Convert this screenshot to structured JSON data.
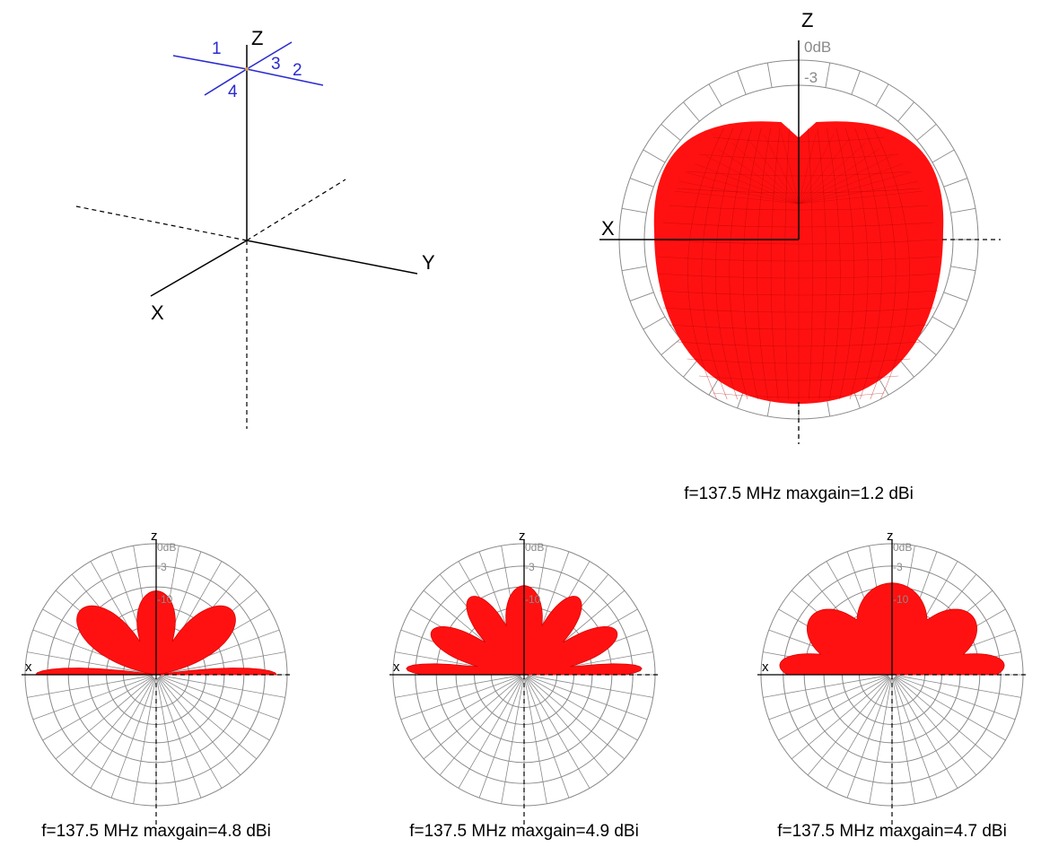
{
  "colors": {
    "pattern": "#ff1111",
    "mesh": "#b80000",
    "antenna": "#2a2ad0",
    "grid": "#8a8a8a",
    "axis": "#000000"
  },
  "antenna_diagram": {
    "axis_labels": {
      "z": "Z",
      "x": "X",
      "y": "Y"
    },
    "element_labels": [
      "1",
      "2",
      "3",
      "4"
    ]
  },
  "patterns": [
    {
      "axis_z": "Z",
      "axis_x": "X",
      "ring_labels": [
        "0dB",
        "-3"
      ],
      "caption": "f=137.5 MHz maxgain=1.2 dBi",
      "style": "omni-3d-mesh"
    },
    {
      "axis_z": "z",
      "axis_x": "x",
      "ring_labels": [
        "0dB",
        "-3",
        "-10"
      ],
      "caption": "f=137.5 MHz maxgain=4.8 dBi",
      "lobes": [
        {
          "elevation_deg": 0,
          "gain_db": -2.0,
          "width_deg": 6
        },
        {
          "elevation_deg": 40,
          "gain_db": -6.0,
          "width_deg": 24
        },
        {
          "elevation_deg": 90,
          "gain_db": -9.0,
          "width_deg": 30
        }
      ]
    },
    {
      "axis_z": "z",
      "axis_x": "x",
      "ring_labels": [
        "0dB",
        "-3",
        "-10"
      ],
      "caption": "f=137.5 MHz maxgain=4.9 dBi",
      "lobes": [
        {
          "elevation_deg": 3,
          "gain_db": -2.5,
          "width_deg": 6
        },
        {
          "elevation_deg": 25,
          "gain_db": -5.5,
          "width_deg": 16
        },
        {
          "elevation_deg": 55,
          "gain_db": -7.0,
          "width_deg": 18
        },
        {
          "elevation_deg": 90,
          "gain_db": -8.0,
          "width_deg": 26
        }
      ]
    },
    {
      "axis_z": "z",
      "axis_x": "x",
      "ring_labels": [
        "0dB",
        "-3",
        "-10"
      ],
      "caption": "f=137.5 MHz maxgain=4.7 dBi",
      "lobes": [
        {
          "elevation_deg": 5,
          "gain_db": -3.5,
          "width_deg": 14
        },
        {
          "elevation_deg": 35,
          "gain_db": -6.0,
          "width_deg": 30
        },
        {
          "elevation_deg": 90,
          "gain_db": -7.5,
          "width_deg": 50
        }
      ]
    }
  ]
}
